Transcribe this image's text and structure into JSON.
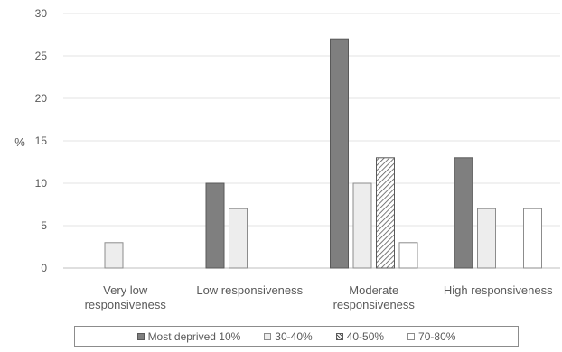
{
  "chart_data": {
    "type": "bar",
    "title": "",
    "xlabel": "",
    "ylabel": "%",
    "ylim": [
      0,
      30
    ],
    "yticks": [
      0,
      5,
      10,
      15,
      20,
      25,
      30
    ],
    "grid": true,
    "legend_position": "bottom",
    "categories": [
      [
        "Very low",
        "responsiveness"
      ],
      [
        "Low responsiveness"
      ],
      [
        "Moderate",
        "responsiveness"
      ],
      [
        "High responsiveness"
      ]
    ],
    "series": [
      {
        "name": "Most deprived 10%",
        "values": [
          0,
          10,
          27,
          13
        ],
        "fill": "#7f7f7f",
        "stroke": "#595959",
        "pattern": "solid"
      },
      {
        "name": "30-40%",
        "values": [
          3,
          7,
          10,
          7
        ],
        "fill": "#ededed",
        "stroke": "#8c8c8c",
        "pattern": "solid"
      },
      {
        "name": "40-50%",
        "values": [
          0,
          0,
          13,
          0
        ],
        "fill": "#ffffff",
        "stroke": "#595959",
        "pattern": "hatch"
      },
      {
        "name": "70-80%",
        "values": [
          0,
          0,
          3,
          7
        ],
        "fill": "#ffffff",
        "stroke": "#8c8c8c",
        "pattern": "solid"
      }
    ]
  }
}
